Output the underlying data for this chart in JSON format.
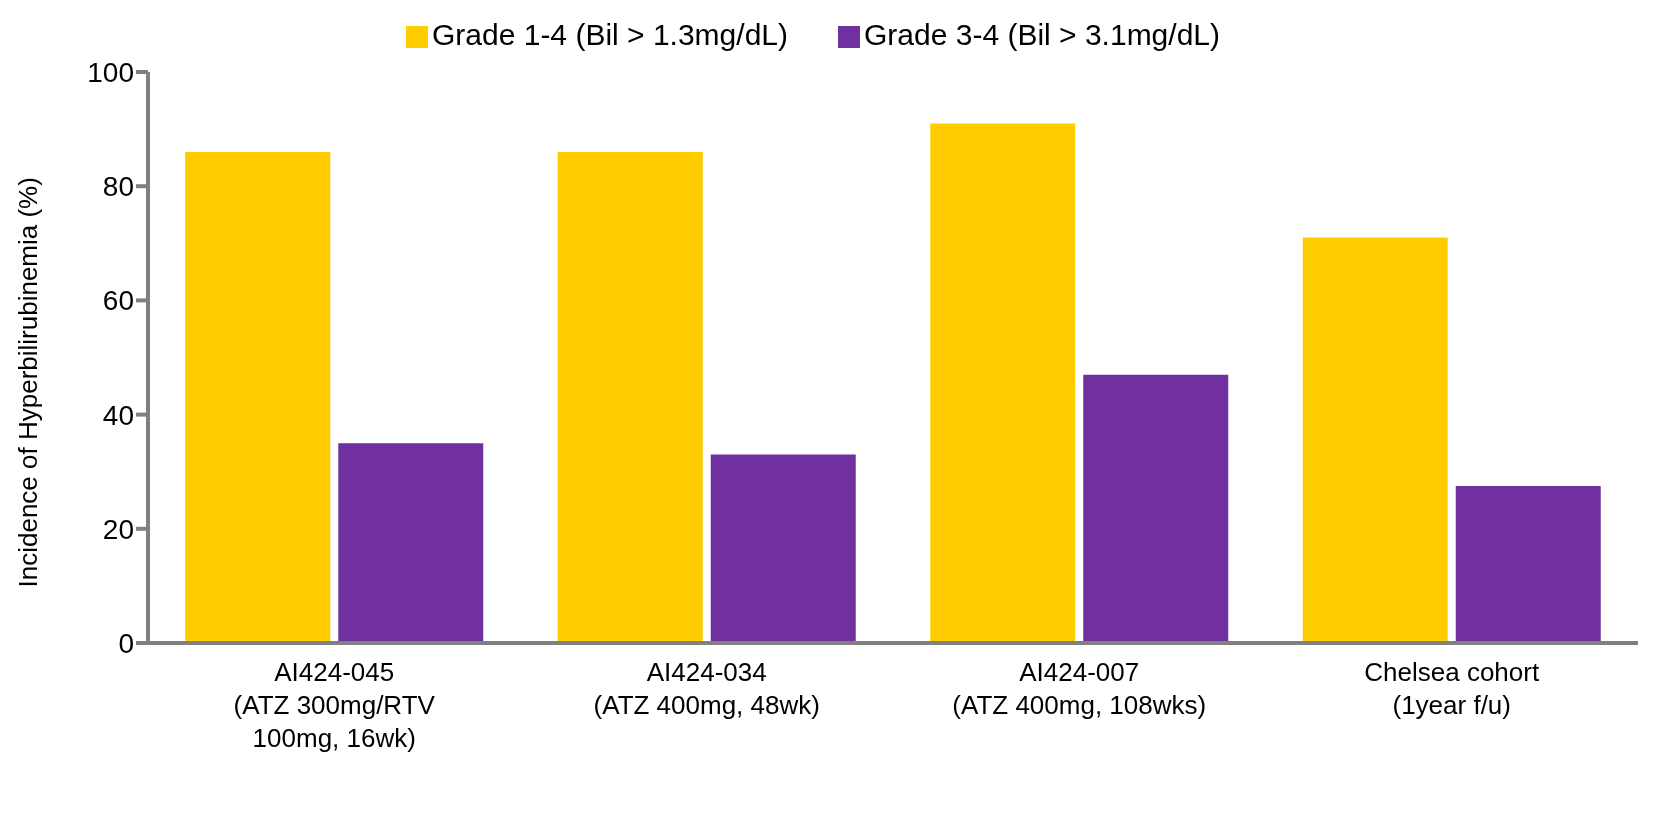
{
  "chart_data": {
    "type": "bar",
    "ylabel": "Incidence of Hyperbilirubinemia (%)",
    "categories": [
      "AI424-045\n(ATZ 300mg/RTV\n100mg, 16wk)",
      "AI424-034\n(ATZ 400mg, 48wk)",
      "AI424-007\n(ATZ 400mg, 108wks)",
      "Chelsea cohort\n(1year f/u)"
    ],
    "series": [
      {
        "name": "Grade 1-4 (Bil > 1.3mg/dL)",
        "color": "#ffcc00",
        "values": [
          86,
          86,
          91,
          71
        ]
      },
      {
        "name": "Grade 3-4 (Bil > 3.1mg/dL)",
        "color": "#7030a0",
        "values": [
          35,
          33,
          47,
          27.5
        ]
      }
    ],
    "ylim": [
      0,
      100
    ],
    "yticks": [
      0,
      20,
      40,
      60,
      80,
      100
    ],
    "grid": false,
    "legend": "top"
  }
}
